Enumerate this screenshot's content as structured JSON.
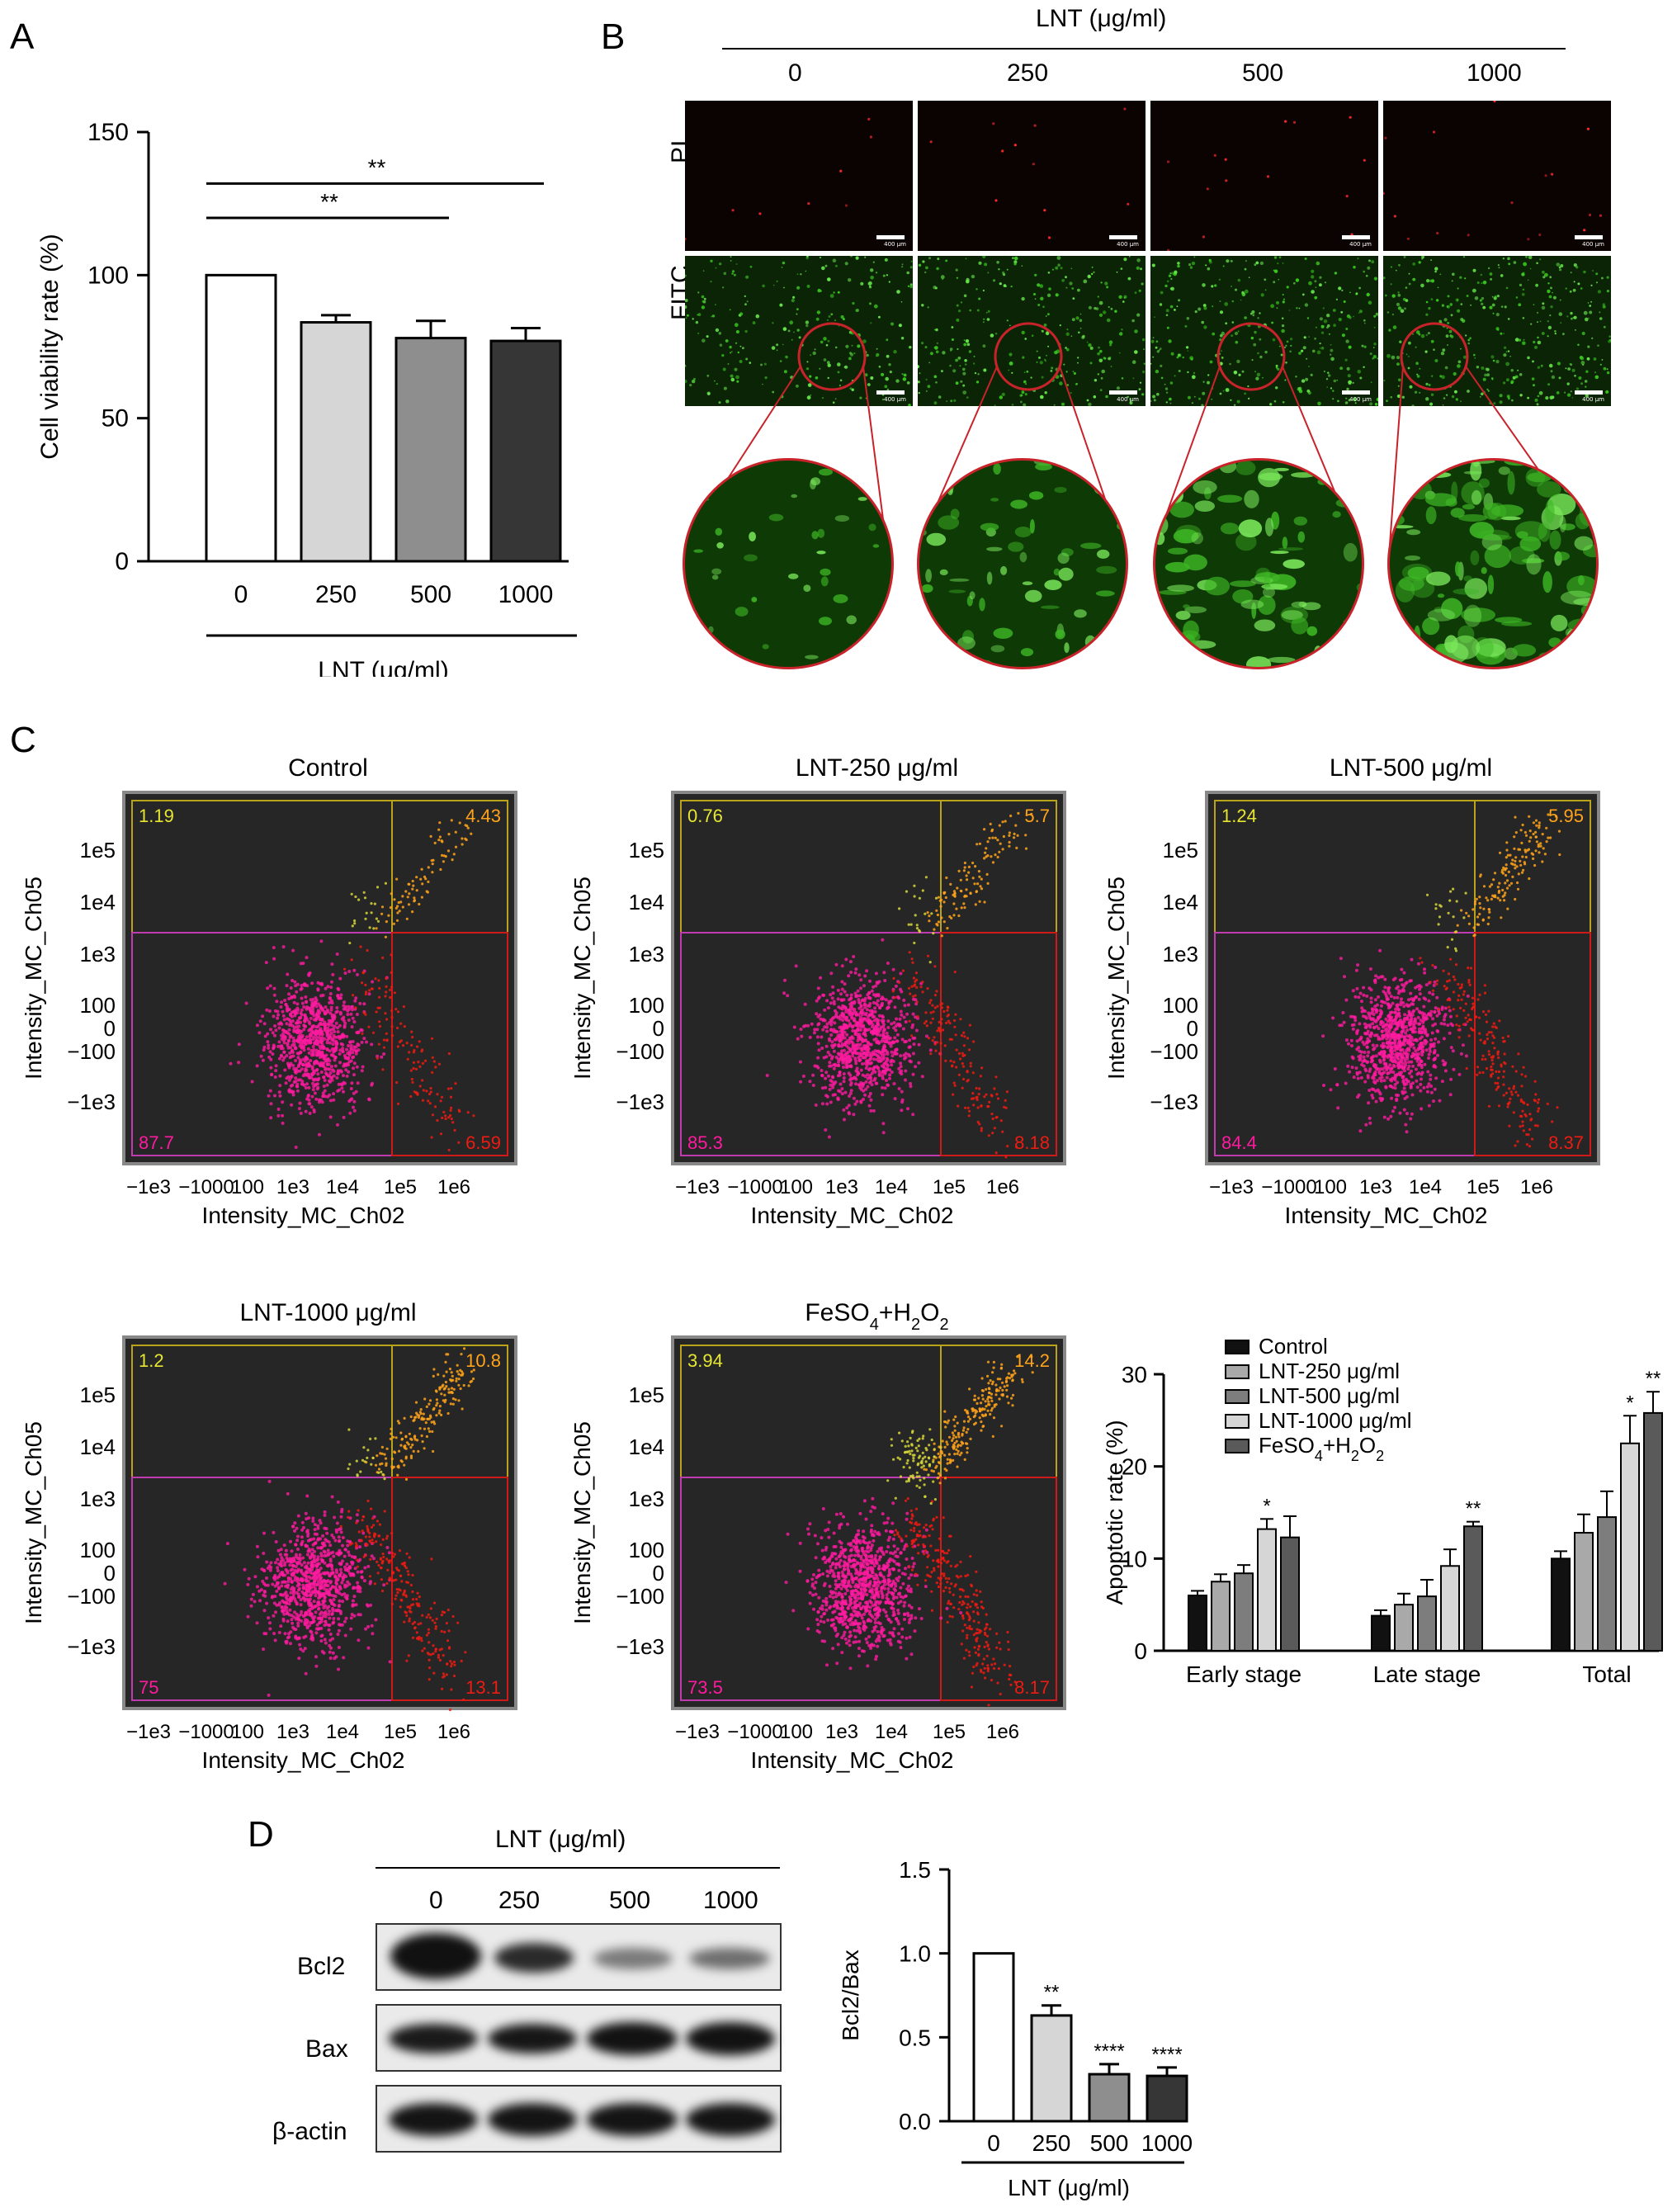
{
  "panels": {
    "A": "A",
    "B": "B",
    "C": "C",
    "D": "D"
  },
  "colors": {
    "pink": "#ff1aa0",
    "red": "#ee1b12",
    "orange": "#ffa31a",
    "yellow": "#d6d63a",
    "plot_bg": "#262626",
    "gate_pink": "#c03ab0",
    "gate_yellow": "#b8a31a",
    "gate_red": "#d01a1a",
    "circle_red": "#c8232a"
  },
  "panelA": {
    "chart_data": {
      "type": "bar",
      "categories": [
        "0",
        "250",
        "500",
        "1000"
      ],
      "values": [
        100,
        83.5,
        78,
        77
      ],
      "errors": [
        0,
        2.5,
        6,
        4.5
      ],
      "fills": [
        "#ffffff",
        "#d6d6d6",
        "#8e8e8e",
        "#363636"
      ],
      "ylabel": "Cell viability rate (%)",
      "xlabel": "LNT (μg/ml)",
      "ylim": [
        0,
        150
      ],
      "yticks": [
        0,
        50,
        100,
        150
      ],
      "significance": [
        {
          "from": 0,
          "to": 2,
          "label": "**"
        },
        {
          "from": 0,
          "to": 3,
          "label": "**"
        }
      ]
    }
  },
  "panelB": {
    "header": "LNT (μg/ml)",
    "concentrations": [
      "0",
      "250",
      "500",
      "1000"
    ],
    "row_labels": [
      "PI",
      "FITC"
    ],
    "scale_label": "400 μm"
  },
  "panelC": {
    "x_axis_label": "Intensity_MC_Ch02",
    "y_axis_label": "Intensity_MC_Ch05",
    "x_ticks": [
      "−1e3",
      "−1000",
      "100",
      "1e3",
      "1e4",
      "1e5",
      "1e6"
    ],
    "y_ticks": [
      "1e5",
      "1e4",
      "1e3",
      "100",
      "0",
      "−100",
      "−1e3"
    ],
    "plots": [
      {
        "title": "Control",
        "q_ul": "1.19",
        "q_ur": "4.43",
        "q_ll": "87.7",
        "q_lr": "6.59"
      },
      {
        "title": "LNT-250 μg/ml",
        "q_ul": "0.76",
        "q_ur": "5.7",
        "q_ll": "85.3",
        "q_lr": "8.18"
      },
      {
        "title": "LNT-500 μg/ml",
        "q_ul": "1.24",
        "q_ur": "5.95",
        "q_ll": "84.4",
        "q_lr": "8.37"
      },
      {
        "title": "LNT-1000 μg/ml",
        "q_ul": "1.2",
        "q_ur": "10.8",
        "q_ll": "75",
        "q_lr": "13.1"
      },
      {
        "title_html": "FeSO<tspan baseline-shift='sub' font-size='20'>4</tspan>+H<tspan baseline-shift='sub' font-size='20'>2</tspan>O<tspan baseline-shift='sub' font-size='20'>2</tspan>",
        "title": "FeSO4+H2O2",
        "q_ul": "3.94",
        "q_ur": "14.2",
        "q_ll": "73.5",
        "q_lr": "8.17"
      }
    ],
    "chart_data": {
      "type": "bar",
      "categories": [
        "Early stage",
        "Late stage",
        "Total"
      ],
      "ylabel": "Apoptotic rate (%)",
      "ylim": [
        0,
        30
      ],
      "yticks": [
        0,
        10,
        20,
        30
      ],
      "series": [
        {
          "name": "Control",
          "fill": "#111111",
          "values": [
            6,
            3.8,
            10
          ],
          "errors": [
            0.5,
            0.6,
            0.8
          ]
        },
        {
          "name": "LNT-250 μg/ml",
          "fill": "#a9a9a9",
          "values": [
            7.5,
            5,
            12.8
          ],
          "errors": [
            0.8,
            1.2,
            2
          ]
        },
        {
          "name": "LNT-500 μg/ml",
          "fill": "#7d7d7d",
          "values": [
            8.4,
            5.9,
            14.5
          ],
          "errors": [
            0.9,
            1.8,
            2.8
          ]
        },
        {
          "name": "LNT-1000 μg/ml",
          "fill": "#d6d6d6",
          "values": [
            13.2,
            9.2,
            22.5
          ],
          "errors": [
            1.1,
            1.8,
            3
          ]
        },
        {
          "name": "FeSO4+H2O2",
          "name_html": "FeSO<tspan baseline-shift='sub' font-size='18'>4</tspan>+H<tspan baseline-shift='sub' font-size='18'>2</tspan>O<tspan baseline-shift='sub' font-size='18'>2</tspan>",
          "fill": "#5a5a5a",
          "values": [
            12.3,
            13.5,
            25.8
          ],
          "errors": [
            2.3,
            0.5,
            2.3
          ]
        }
      ],
      "stars": [
        {
          "group": 0,
          "series": 3,
          "label": "*"
        },
        {
          "group": 1,
          "series": 4,
          "label": "**"
        },
        {
          "group": 2,
          "series": 3,
          "label": "*"
        },
        {
          "group": 2,
          "series": 4,
          "label": "**"
        }
      ]
    }
  },
  "panelD": {
    "header": "LNT (μg/ml)",
    "lanes": [
      "0",
      "250",
      "500",
      "1000"
    ],
    "blot_labels": [
      "Bcl2",
      "Bax",
      "β-actin"
    ],
    "chart_data": {
      "type": "bar",
      "categories": [
        "0",
        "250",
        "500",
        "1000"
      ],
      "values": [
        1.0,
        0.63,
        0.28,
        0.27
      ],
      "errors": [
        0,
        0.06,
        0.06,
        0.05
      ],
      "fills": [
        "#ffffff",
        "#d6d6d6",
        "#8e8e8e",
        "#363636"
      ],
      "ylabel": "Bcl2/Bax",
      "xlabel": "LNT (μg/ml)",
      "ylim": [
        0,
        1.5
      ],
      "yticks": [
        "0.0",
        "0.5",
        "1.0",
        "1.5"
      ],
      "stars": [
        "",
        "**",
        "****",
        "****"
      ]
    }
  }
}
